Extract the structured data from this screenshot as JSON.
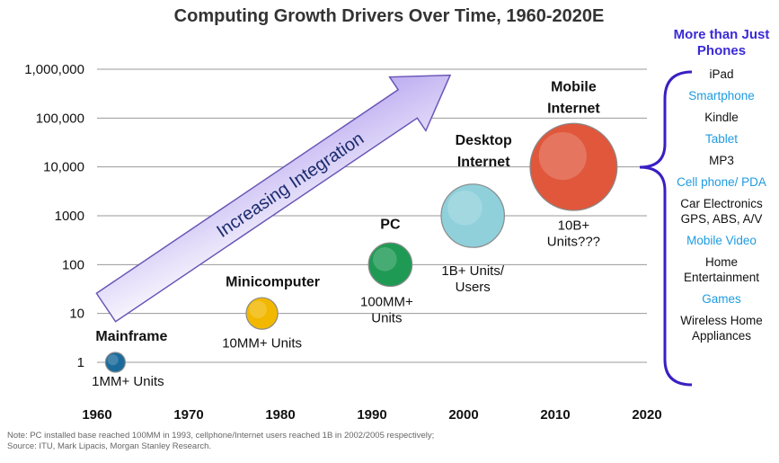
{
  "chart_data": {
    "type": "scatter",
    "title": "Computing Growth Drivers Over Time, 1960-2020E",
    "x_ticks": [
      "1960",
      "1970",
      "1980",
      "1990",
      "2000",
      "2010",
      "2020"
    ],
    "xlim": [
      1960,
      2020
    ],
    "y_scale": "log",
    "y_ticks": [
      {
        "value": 1,
        "label": "1"
      },
      {
        "value": 10,
        "label": "10"
      },
      {
        "value": 100,
        "label": "100"
      },
      {
        "value": 1000,
        "label": "1000"
      },
      {
        "value": 10000,
        "label": "10,000"
      },
      {
        "value": 100000,
        "label": "100,000"
      },
      {
        "value": 1000000,
        "label": "1,000,000"
      }
    ],
    "ylim": [
      1,
      1000000
    ],
    "grid": true,
    "points": [
      {
        "name": "Mainframe",
        "year": 1962,
        "value": 1,
        "size": 1,
        "color": "#1a6b9c",
        "label": "1MM+ Units"
      },
      {
        "name": "Minicomputer",
        "year": 1978,
        "value": 10,
        "size": 1.6,
        "color": "#f2b800",
        "label": "10MM+ Units"
      },
      {
        "name": "PC",
        "year": 1992,
        "value": 100,
        "size": 2.2,
        "color": "#1f9a55",
        "label": "100MM+ Units"
      },
      {
        "name": "Desktop Internet",
        "year": 2001,
        "value": 1000,
        "size": 3.2,
        "color": "#8fd0db",
        "label": "1B+ Units/ Users"
      },
      {
        "name": "Mobile Internet",
        "year": 2012,
        "value": 10000,
        "size": 4.4,
        "color": "#e0573c",
        "label": "10B+ Units???"
      }
    ],
    "annotations": [
      "Increasing Integration"
    ]
  },
  "side_panel": {
    "heading": "More than Just Phones",
    "items": [
      {
        "text": "iPad",
        "color": "#111111"
      },
      {
        "text": "Smartphone",
        "color": "#1e9be0"
      },
      {
        "text": "Kindle",
        "color": "#111111"
      },
      {
        "text": "Tablet",
        "color": "#1e9be0"
      },
      {
        "text": "MP3",
        "color": "#111111"
      },
      {
        "text": "Cell phone/ PDA",
        "color": "#1e9be0"
      },
      {
        "text": "Car Electronics GPS, ABS, A/V",
        "color": "#111111"
      },
      {
        "text": "Mobile Video",
        "color": "#1e9be0"
      },
      {
        "text": "Home Entertainment",
        "color": "#111111"
      },
      {
        "text": "Games",
        "color": "#1e9be0"
      },
      {
        "text": "Wireless Home Appliances",
        "color": "#111111"
      }
    ]
  },
  "notes": {
    "line1": "Note: PC installed base reached 100MM in 1993, cellphone/Internet users reached 1B in 2002/2005 respectively;",
    "line2": "Source: ITU, Mark Lipacis, Morgan Stanley Research."
  }
}
